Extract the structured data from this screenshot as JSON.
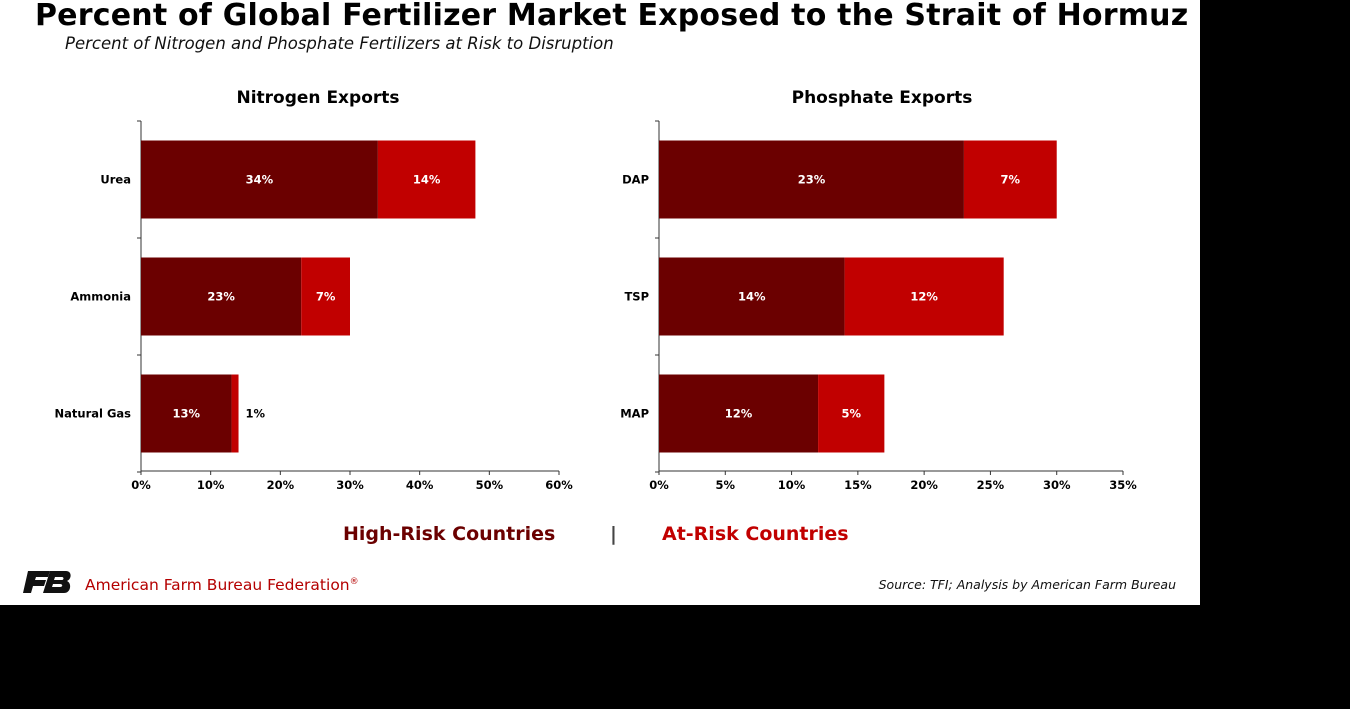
{
  "header": {
    "title": "Percent of Global Fertilizer Market Exposed to the Strait of Hormuz",
    "subtitle": "Percent of Nitrogen and Phosphate Fertilizers at Risk to Disruption"
  },
  "colors": {
    "high_risk": "#6b0000",
    "at_risk": "#c10000",
    "axis": "#333333",
    "label_text": "#ffffff"
  },
  "chart_data": [
    {
      "type": "bar",
      "orientation": "horizontal",
      "stacked": true,
      "title": "Nitrogen Exports",
      "categories": [
        "Urea",
        "Ammonia",
        "Natural Gas"
      ],
      "series": [
        {
          "name": "High-Risk Countries",
          "values": [
            34,
            23,
            13
          ],
          "labels": [
            "34%",
            "23%",
            "13%"
          ]
        },
        {
          "name": "At-Risk Countries",
          "values": [
            14,
            7,
            1
          ],
          "labels": [
            "14%",
            "7%",
            "1%"
          ]
        }
      ],
      "xlim": [
        0,
        60
      ],
      "ticks": [
        0,
        10,
        20,
        30,
        40,
        50,
        60
      ],
      "tick_labels": [
        "0%",
        "10%",
        "20%",
        "30%",
        "40%",
        "50%",
        "60%"
      ]
    },
    {
      "type": "bar",
      "orientation": "horizontal",
      "stacked": true,
      "title": "Phosphate Exports",
      "categories": [
        "DAP",
        "TSP",
        "MAP"
      ],
      "series": [
        {
          "name": "High-Risk Countries",
          "values": [
            23,
            14,
            12
          ],
          "labels": [
            "23%",
            "14%",
            "12%"
          ]
        },
        {
          "name": "At-Risk Countries",
          "values": [
            7,
            12,
            5
          ],
          "labels": [
            "7%",
            "12%",
            "5%"
          ]
        }
      ],
      "xlim": [
        0,
        35
      ],
      "ticks": [
        0,
        5,
        10,
        15,
        20,
        25,
        30,
        35
      ],
      "tick_labels": [
        "0%",
        "5%",
        "10%",
        "15%",
        "20%",
        "25%",
        "30%",
        "35%"
      ]
    }
  ],
  "legend": {
    "high_risk_label": "High-Risk Countries",
    "separator": "|",
    "at_risk_label": "At-Risk Countries"
  },
  "footer": {
    "org_name": "American Farm Bureau Federation",
    "org_mark": "®",
    "source": "Source: TFI; Analysis by American Farm Bureau"
  }
}
